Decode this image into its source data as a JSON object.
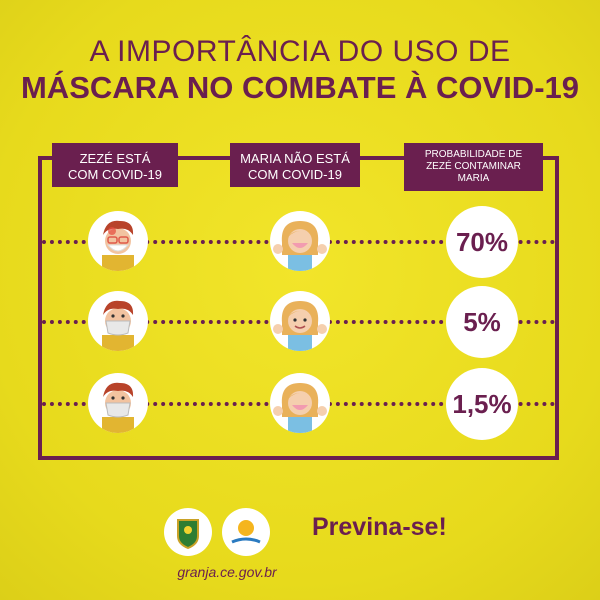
{
  "title": {
    "line1": "A IMPORTÂNCIA DO USO DE",
    "line2": "MÁSCARA NO COMBATE À COVID-19"
  },
  "headers": {
    "col1": [
      "ZEZÉ ESTÁ",
      "COM COVID-19"
    ],
    "col2": [
      "MARIA NÃO ESTÁ",
      "COM COVID-19"
    ],
    "col3": [
      "PROBABILIDADE DE",
      "ZEZÉ CONTAMINAR",
      "MARIA"
    ]
  },
  "rows": [
    {
      "probability": "70%"
    },
    {
      "probability": "5%"
    },
    {
      "probability": "1,5%"
    }
  ],
  "footer": {
    "link": "granja.ce.gov.br",
    "slogan": "Previna-se!"
  },
  "colors": {
    "background": "#ecdf1f",
    "accent": "#6a1f4f"
  },
  "icons": [
    "zeze-avatar-icon",
    "maria-avatar-icon",
    "granja-crest-icon",
    "sun-logo-icon"
  ]
}
